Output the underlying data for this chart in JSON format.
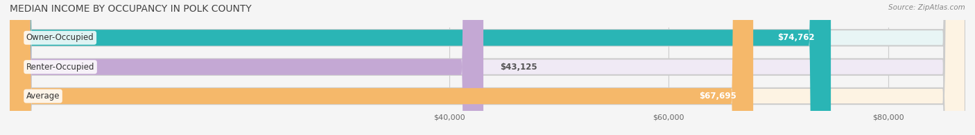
{
  "title": "MEDIAN INCOME BY OCCUPANCY IN POLK COUNTY",
  "source": "Source: ZipAtlas.com",
  "categories": [
    "Owner-Occupied",
    "Renter-Occupied",
    "Average"
  ],
  "values": [
    74762,
    43125,
    67695
  ],
  "labels": [
    "$74,762",
    "$43,125",
    "$67,695"
  ],
  "bar_colors": [
    "#2ab5b5",
    "#c4a8d4",
    "#f5b86a"
  ],
  "bar_bg_colors": [
    "#e8f5f5",
    "#f0eaf5",
    "#fdf3e3"
  ],
  "x_min": 0,
  "x_max": 87000,
  "x_ticks": [
    40000,
    60000,
    80000
  ],
  "x_tick_labels": [
    "$40,000",
    "$60,000",
    "$80,000"
  ],
  "figsize": [
    14.06,
    1.96
  ],
  "dpi": 100
}
